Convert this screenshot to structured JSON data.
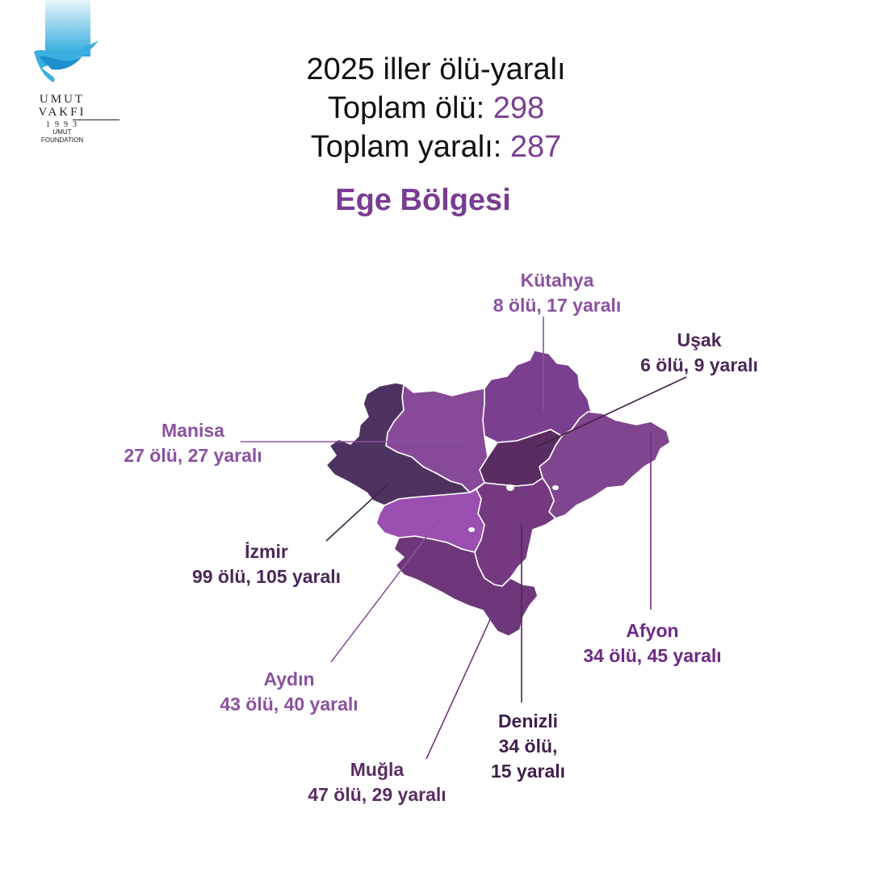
{
  "logo": {
    "line1": "UMUT",
    "line2": "VAKFI",
    "line3": "1993",
    "line4": "UMUT",
    "line5": "FOUNDATION"
  },
  "header": {
    "title": "2025 iller ölü-yaralı",
    "total_deaths_label": "Toplam ölü: ",
    "total_deaths_value": "298",
    "total_injured_label": "Toplam yaralı: ",
    "total_injured_value": "287"
  },
  "region_title": "Ege Bölgesi",
  "provinces": {
    "kutahya": {
      "name": "Kütahya",
      "stats": "8 ölü, 17 yaralı",
      "deaths": 8,
      "injured": 17,
      "fill": "#7b3f8f"
    },
    "usak": {
      "name": "Uşak",
      "stats": "6 ölü, 9 yaralı",
      "deaths": 6,
      "injured": 9,
      "fill": "#5a2d62"
    },
    "manisa": {
      "name": "Manisa",
      "stats": "27 ölü, 27 yaralı",
      "deaths": 27,
      "injured": 27,
      "fill": "#864a99"
    },
    "izmir": {
      "name": "İzmir",
      "stats": "99 ölü, 105 yaralı",
      "deaths": 99,
      "injured": 105,
      "fill": "#4e3360"
    },
    "aydin": {
      "name": "Aydın",
      "stats": "43 ölü, 40 yaralı",
      "deaths": 43,
      "injured": 40,
      "fill": "#9b4fb0"
    },
    "mugla": {
      "name": "Muğla",
      "stats": "47 ölü, 29 yaralı",
      "deaths": 47,
      "injured": 29,
      "fill": "#6e3779"
    },
    "denizli": {
      "name": "Denizli",
      "stats_line1": "34 ölü,",
      "stats_line2": "15 yaralı",
      "deaths": 34,
      "injured": 15,
      "fill": "#74397f"
    },
    "afyon": {
      "name": "Afyon",
      "stats": "34 ölü, 45 yaralı",
      "deaths": 34,
      "injured": 45,
      "fill": "#80458f"
    }
  },
  "colors": {
    "accent": "#7b3f93",
    "label_light": "#8a52a0",
    "label_dark": "#4a2858",
    "leader_line": "#5a3466"
  }
}
